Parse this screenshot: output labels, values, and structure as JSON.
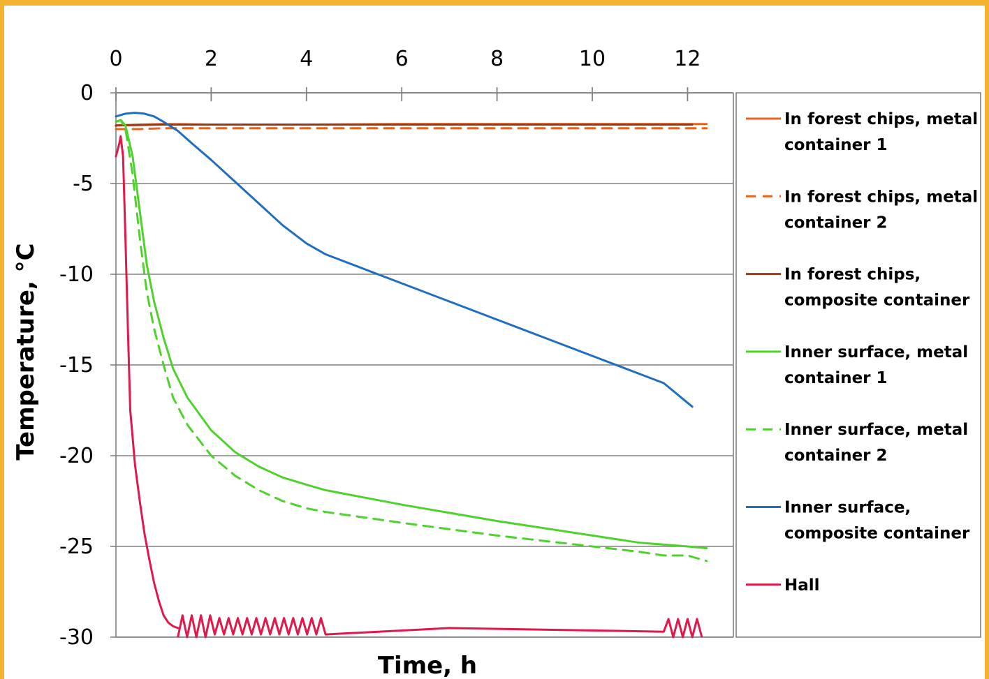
{
  "chart_data": {
    "type": "line",
    "title": "",
    "xlabel": "Time, h",
    "ylabel": "Temperature, °C",
    "xlim": [
      0,
      12.6
    ],
    "ylim": [
      -30,
      0
    ],
    "x_ticks": [
      "0",
      "2",
      "4",
      "6",
      "8",
      "10",
      "12"
    ],
    "y_ticks": [
      "0",
      "-5",
      "-10",
      "-15",
      "-20",
      "-25",
      "-30"
    ],
    "x_axis_position": "top",
    "grid": "horizontal",
    "legend_position": "right",
    "series": [
      {
        "name": "In forest chips, metal container 1",
        "legend_lines": [
          "In forest chips, metal",
          "container 1"
        ],
        "color": "#e8641e",
        "dash": "solid",
        "x": [
          0,
          0.5,
          1,
          2,
          4,
          6,
          8,
          10,
          12,
          12.4
        ],
        "y": [
          -1.8,
          -1.75,
          -1.72,
          -1.75,
          -1.75,
          -1.72,
          -1.72,
          -1.72,
          -1.72,
          -1.72
        ]
      },
      {
        "name": "In forest chips, metal container 2",
        "legend_lines": [
          "In forest chips, metal",
          "container 2"
        ],
        "color": "#e8641e",
        "dash": "dashed",
        "x": [
          0,
          0.5,
          1,
          2,
          4,
          6,
          8,
          10,
          12,
          12.4
        ],
        "y": [
          -2.0,
          -2.0,
          -1.95,
          -1.95,
          -1.95,
          -1.95,
          -1.95,
          -1.95,
          -1.95,
          -1.95
        ]
      },
      {
        "name": "In forest chips, composite container",
        "legend_lines": [
          "In forest chips,",
          "composite container"
        ],
        "color": "#9a3a14",
        "dash": "solid",
        "x": [
          0,
          1,
          2,
          4,
          6,
          8,
          10,
          12.1
        ],
        "y": [
          -1.8,
          -1.75,
          -1.75,
          -1.75,
          -1.75,
          -1.75,
          -1.75,
          -1.75
        ]
      },
      {
        "name": "Inner surface, metal container 1",
        "legend_lines": [
          "Inner surface, metal",
          "container 1"
        ],
        "color": "#4fd22e",
        "dash": "solid",
        "x": [
          0,
          0.1,
          0.2,
          0.35,
          0.5,
          0.65,
          0.8,
          1.0,
          1.2,
          1.5,
          2.0,
          2.5,
          3.0,
          3.5,
          4.0,
          4.4,
          6,
          8,
          10,
          11,
          12,
          12.4
        ],
        "y": [
          -1.6,
          -1.5,
          -1.8,
          -3.5,
          -6.5,
          -9.5,
          -11.5,
          -13.5,
          -15.2,
          -16.8,
          -18.6,
          -19.8,
          -20.6,
          -21.2,
          -21.6,
          -21.9,
          -22.7,
          -23.6,
          -24.4,
          -24.8,
          -25.0,
          -25.1
        ]
      },
      {
        "name": "Inner surface, metal container 2",
        "legend_lines": [
          "Inner surface, metal",
          "container 2"
        ],
        "color": "#4fd22e",
        "dash": "dashed",
        "x": [
          0,
          0.1,
          0.2,
          0.35,
          0.5,
          0.65,
          0.8,
          1.0,
          1.2,
          1.5,
          2.0,
          2.5,
          3.0,
          3.5,
          4.0,
          4.4,
          6,
          8,
          10,
          11,
          11.5,
          12,
          12.4
        ],
        "y": [
          -1.6,
          -1.5,
          -2.0,
          -4.5,
          -8.0,
          -11.0,
          -13.0,
          -15.0,
          -16.8,
          -18.3,
          -20.0,
          -21.1,
          -21.9,
          -22.5,
          -22.9,
          -23.1,
          -23.7,
          -24.4,
          -25.0,
          -25.3,
          -25.5,
          -25.5,
          -25.8
        ]
      },
      {
        "name": "Inner surface, composite container",
        "legend_lines": [
          "Inner surface,",
          "composite container"
        ],
        "color": "#1f6fc0",
        "dash": "solid",
        "x": [
          0,
          0.2,
          0.4,
          0.6,
          0.8,
          1.0,
          1.3,
          1.6,
          2.0,
          2.5,
          3.0,
          3.5,
          4.0,
          4.4,
          5,
          6,
          7,
          8,
          9,
          10,
          11,
          11.5,
          12.1
        ],
        "y": [
          -1.3,
          -1.15,
          -1.1,
          -1.15,
          -1.3,
          -1.6,
          -2.1,
          -2.8,
          -3.7,
          -4.9,
          -6.1,
          -7.3,
          -8.3,
          -8.9,
          -9.5,
          -10.5,
          -11.5,
          -12.5,
          -13.5,
          -14.5,
          -15.5,
          -16.0,
          -17.3
        ]
      },
      {
        "name": "Hall",
        "legend_lines": [
          "Hall"
        ],
        "color": "#e0194a",
        "dash": "solid",
        "x": [
          0,
          0.07,
          0.1,
          0.15,
          0.2,
          0.25,
          0.3,
          0.4,
          0.5,
          0.6,
          0.7,
          0.8,
          0.9,
          1.0,
          1.1,
          1.2,
          1.3
        ],
        "y": [
          -3.5,
          -2.8,
          -2.4,
          -3.5,
          -8.0,
          -13.0,
          -17.5,
          -20.5,
          -22.5,
          -24.3,
          -25.7,
          -27.0,
          -28.0,
          -28.8,
          -29.2,
          -29.4,
          -29.5
        ]
      }
    ]
  }
}
